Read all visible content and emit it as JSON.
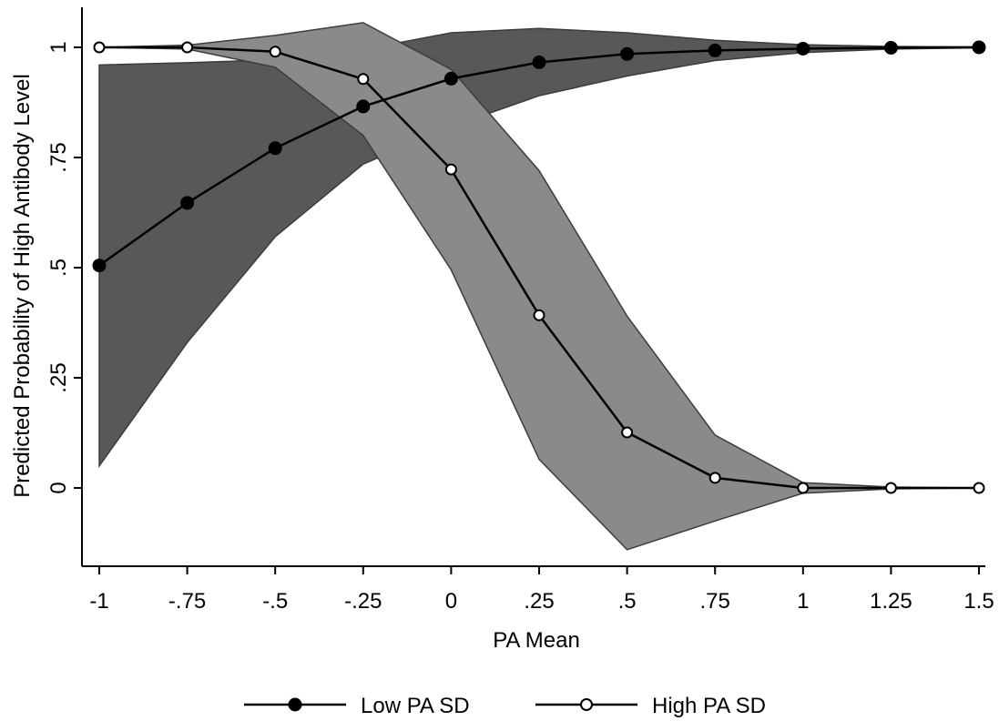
{
  "chart_data": {
    "type": "line",
    "title": "",
    "xlabel": "PA Mean",
    "ylabel": "Predicted Probability of High Antibody Level",
    "x": [
      -1,
      -0.75,
      -0.5,
      -0.25,
      0,
      0.25,
      0.5,
      0.75,
      1,
      1.25,
      1.5
    ],
    "xlim": [
      -1,
      1.5
    ],
    "ylim": [
      -0.15,
      1.05
    ],
    "xticks": [
      {
        "value": -1,
        "label": "-1"
      },
      {
        "value": -0.75,
        "label": "-.75"
      },
      {
        "value": -0.5,
        "label": "-.5"
      },
      {
        "value": -0.25,
        "label": "-.25"
      },
      {
        "value": 0,
        "label": "0"
      },
      {
        "value": 0.25,
        "label": ".25"
      },
      {
        "value": 0.5,
        "label": ".5"
      },
      {
        "value": 0.75,
        "label": ".75"
      },
      {
        "value": 1,
        "label": "1"
      },
      {
        "value": 1.25,
        "label": "1.25"
      },
      {
        "value": 1.5,
        "label": "1.5"
      }
    ],
    "yticks": [
      {
        "value": 0,
        "label": "0"
      },
      {
        "value": 0.25,
        "label": ".25"
      },
      {
        "value": 0.5,
        "label": ".5"
      },
      {
        "value": 0.75,
        "label": ".75"
      },
      {
        "value": 1,
        "label": "1"
      }
    ],
    "grid": false,
    "legend_position": "bottom",
    "series": [
      {
        "name": "Low PA SD",
        "marker": "filled-circle",
        "values": [
          0.505,
          0.647,
          0.771,
          0.866,
          0.929,
          0.966,
          0.985,
          0.993,
          0.997,
          0.999,
          1.0
        ],
        "ci_lower": [
          0.05,
          0.33,
          0.57,
          0.735,
          0.82,
          0.89,
          0.935,
          0.97,
          0.988,
          0.996,
          0.999
        ],
        "ci_upper": [
          0.96,
          0.965,
          0.972,
          0.995,
          1.033,
          1.043,
          1.033,
          1.016,
          1.006,
          1.002,
          1.001
        ],
        "band_color": "#585858"
      },
      {
        "name": "High PA SD",
        "marker": "hollow-circle",
        "values": [
          1.0,
          1.0,
          0.99,
          0.928,
          0.723,
          0.392,
          0.126,
          0.023,
          0.0,
          0.0,
          0.0
        ],
        "ci_lower": [
          1.0,
          0.996,
          0.955,
          0.8,
          0.495,
          0.065,
          -0.14,
          -0.075,
          -0.012,
          -0.002,
          0.0
        ],
        "ci_upper": [
          1.0,
          1.005,
          1.027,
          1.056,
          0.95,
          0.72,
          0.39,
          0.12,
          0.012,
          0.002,
          0.0
        ],
        "band_color": "#8a8a8a"
      }
    ],
    "colors": {
      "line": "#000000",
      "band_edge": "#3c3c3c",
      "marker_fill_hollow": "#ffffff"
    }
  }
}
